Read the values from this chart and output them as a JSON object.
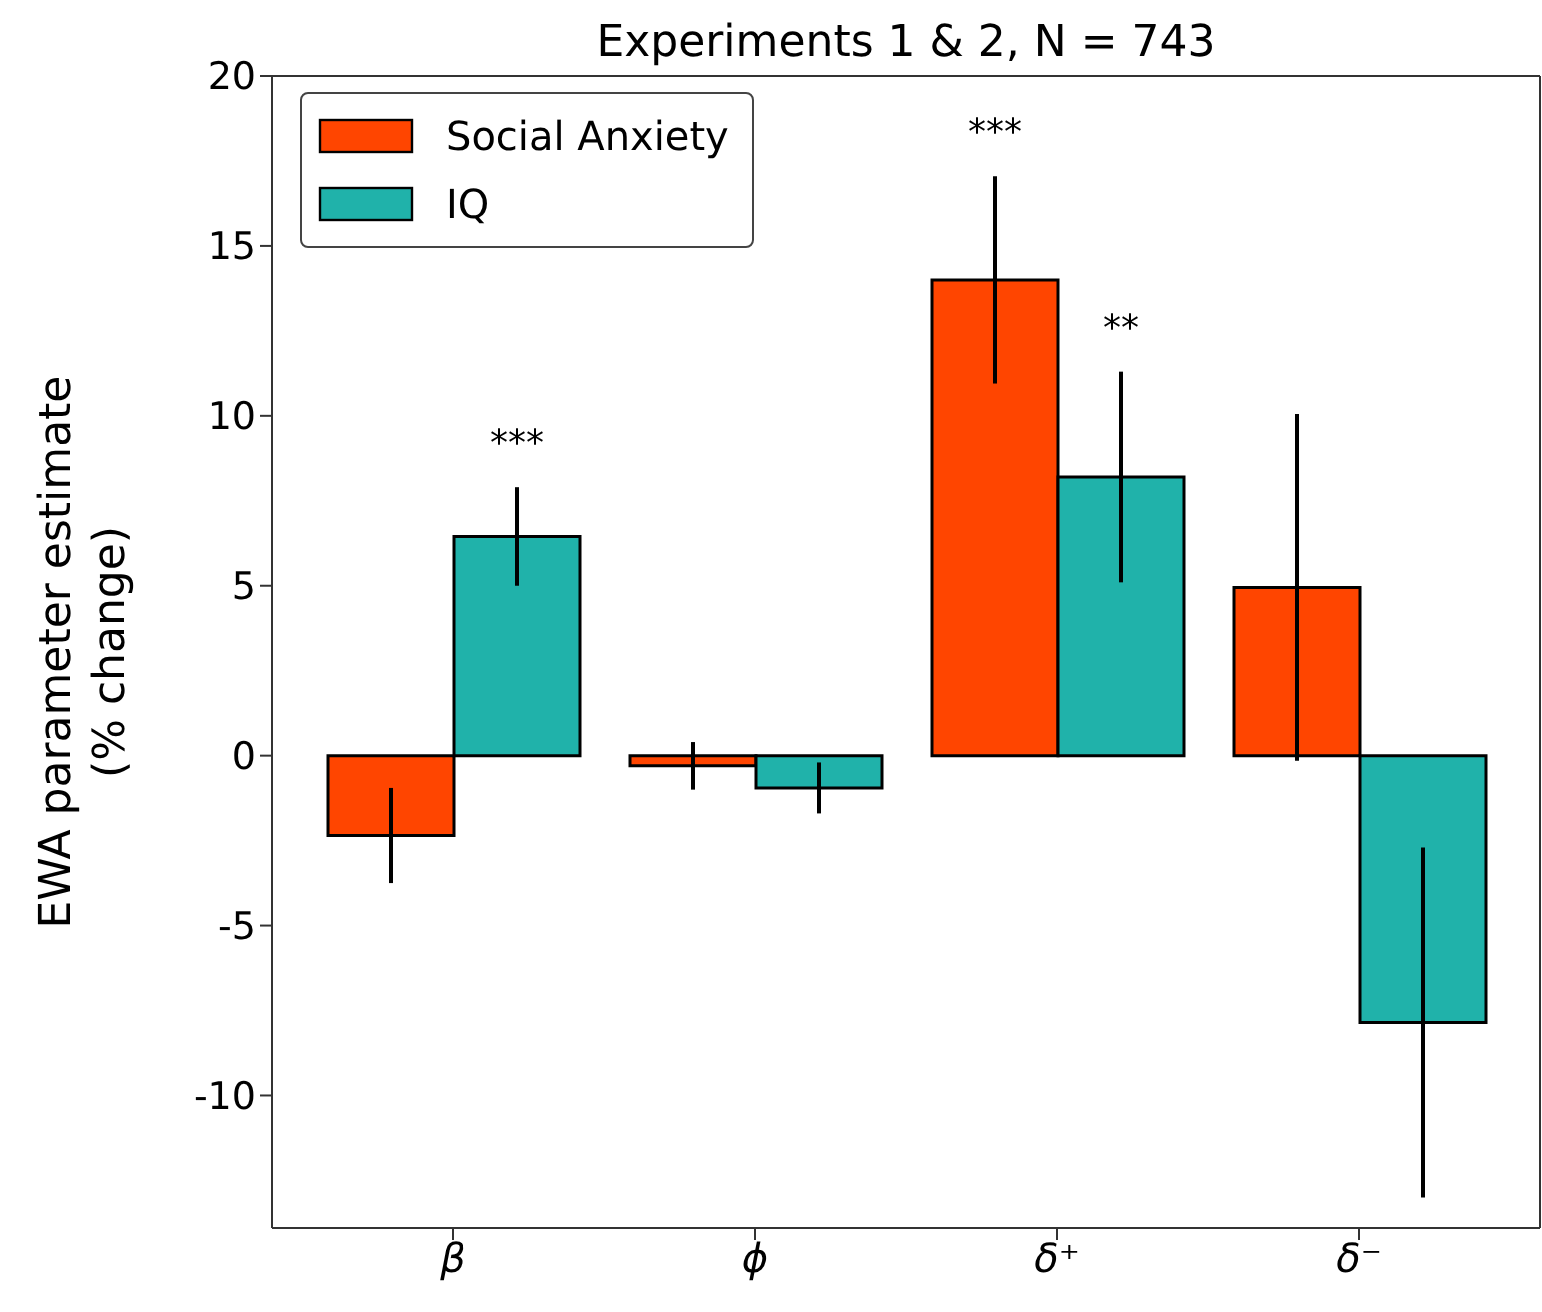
{
  "chart_data": {
    "type": "bar",
    "title": "Experiments 1 & 2, N = 743",
    "ylabel": "EWA parameter estimate\n(% change)",
    "categories": [
      "β",
      "ϕ",
      "δ⁺",
      "δ⁻"
    ],
    "series": [
      {
        "name": "Social Anxiety",
        "color": "#ff4500",
        "values": [
          -2.35,
          -0.3,
          14.0,
          4.95
        ],
        "errors": [
          1.4,
          0.7,
          3.05,
          5.1
        ]
      },
      {
        "name": "IQ",
        "color": "#20b2aa",
        "values": [
          6.45,
          -0.95,
          8.2,
          -7.85
        ],
        "errors": [
          1.45,
          0.75,
          3.1,
          5.15
        ]
      }
    ],
    "ylim": [
      -13.9,
      20
    ],
    "yticks": [
      -10,
      -5,
      0,
      5,
      10,
      15,
      20
    ],
    "grid": false,
    "legend": "top left",
    "annotations": [
      "***",
      "***",
      "**"
    ]
  }
}
